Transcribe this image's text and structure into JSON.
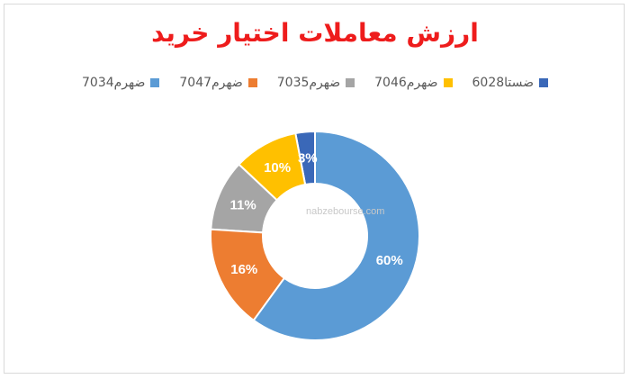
{
  "chart_data": {
    "type": "doughnut",
    "title": "ارزش معاملات اختیار خرید",
    "legend_position": "top",
    "series": [
      {
        "name": "ضستا6028",
        "value": 3,
        "label": "3%",
        "color": "#3a68b8"
      },
      {
        "name": "ضهرم7046",
        "value": 10,
        "label": "10%",
        "color": "#ffc000"
      },
      {
        "name": "ضهرم7035",
        "value": 11,
        "label": "11%",
        "color": "#a5a5a5"
      },
      {
        "name": "ضهرم7047",
        "value": 16,
        "label": "16%",
        "color": "#ed7d31"
      },
      {
        "name": "ضهرم7034",
        "value": 60,
        "label": "60%",
        "color": "#5b9bd5"
      }
    ],
    "watermark": "nabzebourse.com"
  }
}
